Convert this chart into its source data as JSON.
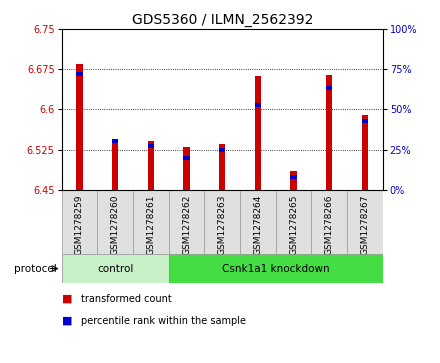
{
  "title": "GDS5360 / ILMN_2562392",
  "samples": [
    "GSM1278259",
    "GSM1278260",
    "GSM1278261",
    "GSM1278262",
    "GSM1278263",
    "GSM1278264",
    "GSM1278265",
    "GSM1278266",
    "GSM1278267"
  ],
  "transformed_counts": [
    6.685,
    6.545,
    6.54,
    6.53,
    6.535,
    6.663,
    6.485,
    6.665,
    6.59
  ],
  "percentile_ranks": [
    72,
    30,
    27,
    20,
    25,
    53,
    8,
    63,
    43
  ],
  "baseline": 6.45,
  "ylim_left": [
    6.45,
    6.75
  ],
  "ylim_right": [
    0,
    100
  ],
  "yticks_left": [
    6.45,
    6.525,
    6.6,
    6.675,
    6.75
  ],
  "yticks_right": [
    0,
    25,
    50,
    75,
    100
  ],
  "bar_color_red": "#CC0000",
  "bar_color_blue": "#0000CC",
  "red_bar_width": 0.18,
  "blue_bar_width": 0.18,
  "control_color_light": "#c8f0c8",
  "knockdown_color": "#44dd44",
  "control_label": "control",
  "knockdown_label": "Csnk1a1 knockdown",
  "protocol_label": "protocol",
  "legend_red": "transformed count",
  "legend_blue": "percentile rank within the sample",
  "control_count": 3,
  "sample_box_color": "#E0E0E0",
  "title_fontsize": 10,
  "tick_fontsize": 7,
  "sample_fontsize": 6.5
}
